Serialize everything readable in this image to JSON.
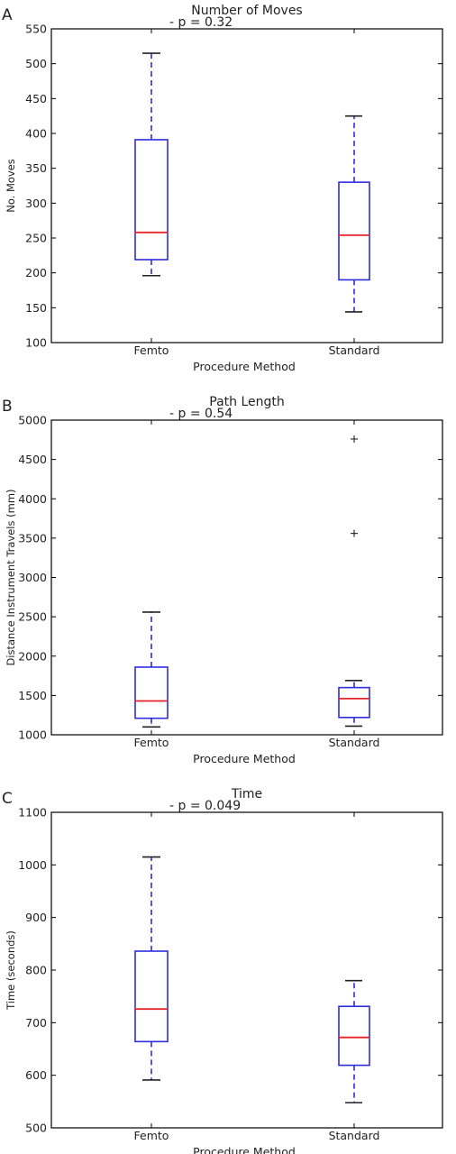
{
  "colors": {
    "box": "#2d2de0",
    "whisker": "#2d2de0",
    "cap": "#222222",
    "median": "#e8252a",
    "axis": "#000000",
    "flier": "#222222"
  },
  "chart_data": [
    {
      "type": "box",
      "panel_letter": "A",
      "title": "Number of Moves",
      "annotation": "- p = 0.32",
      "xlabel": "Procedure Method",
      "ylabel": "No. Moves",
      "ylim": [
        100,
        550
      ],
      "yticks": [
        100,
        150,
        200,
        250,
        300,
        350,
        400,
        450,
        500,
        550
      ],
      "grid": false,
      "categories": [
        "Femto",
        "Standard"
      ],
      "boxes": [
        {
          "min": 196,
          "q1": 219,
          "median": 258,
          "q3": 391,
          "max": 515,
          "outliers": []
        },
        {
          "min": 144,
          "q1": 190,
          "median": 254,
          "q3": 330,
          "max": 425,
          "outliers": []
        }
      ]
    },
    {
      "type": "box",
      "panel_letter": "B",
      "title": "Path Length",
      "annotation": "- p = 0.54",
      "xlabel": "Procedure Method",
      "ylabel": "Distance Instrument Travels (mm)",
      "ylim": [
        1000,
        5000
      ],
      "yticks": [
        1000,
        1500,
        2000,
        2500,
        3000,
        3500,
        4000,
        4500,
        5000
      ],
      "grid": false,
      "categories": [
        "Femto",
        "Standard"
      ],
      "boxes": [
        {
          "min": 1100,
          "q1": 1210,
          "median": 1430,
          "q3": 1860,
          "max": 2560,
          "outliers": []
        },
        {
          "min": 1110,
          "q1": 1220,
          "median": 1460,
          "q3": 1600,
          "max": 1690,
          "outliers": [
            3560,
            4760
          ]
        }
      ]
    },
    {
      "type": "box",
      "panel_letter": "C",
      "title": "Time",
      "annotation": "- p = 0.049",
      "xlabel": "Procedure Method",
      "ylabel": "Time (seconds)",
      "ylim": [
        500,
        1100
      ],
      "yticks": [
        500,
        600,
        700,
        800,
        900,
        1000,
        1100
      ],
      "grid": false,
      "categories": [
        "Femto",
        "Standard"
      ],
      "boxes": [
        {
          "min": 591,
          "q1": 664,
          "median": 726,
          "q3": 836,
          "max": 1015,
          "outliers": []
        },
        {
          "min": 548,
          "q1": 619,
          "median": 672,
          "q3": 731,
          "max": 780,
          "outliers": []
        }
      ]
    }
  ]
}
